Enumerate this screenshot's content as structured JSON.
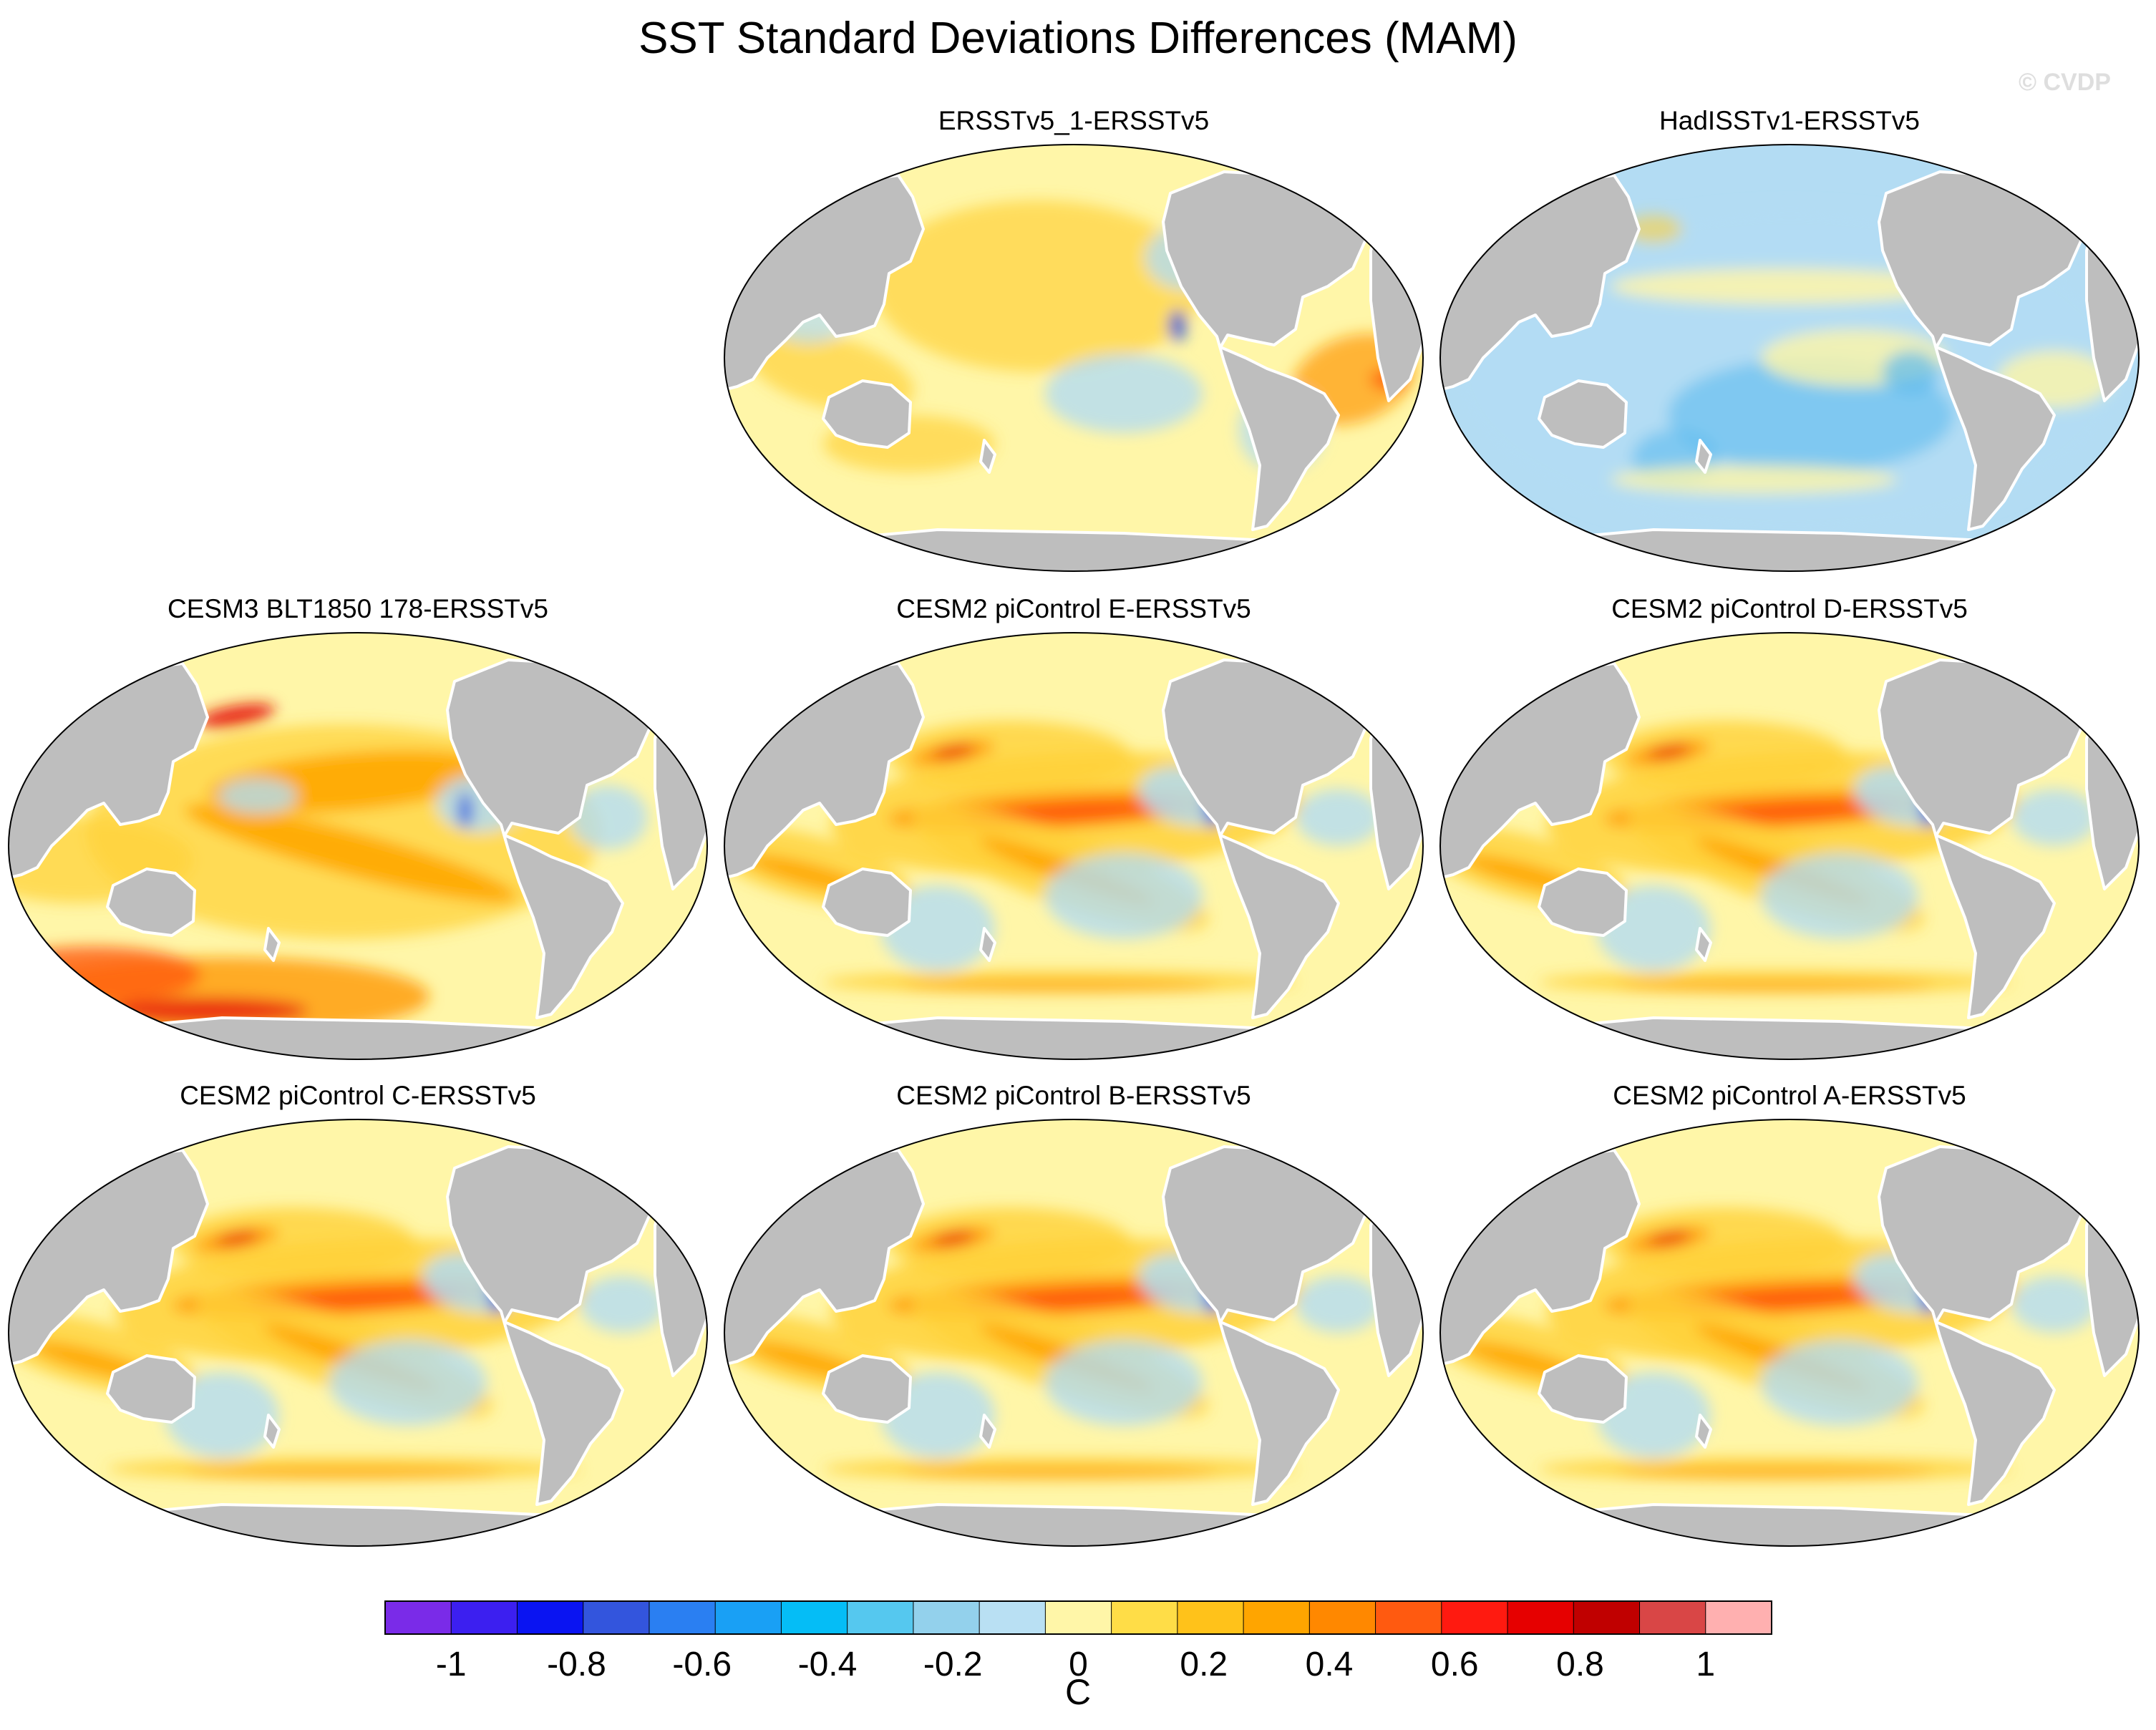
{
  "title": "SST Standard Deviations Differences (MAM)",
  "watermark": "© CVDP",
  "colors": {
    "land": "#bebebe",
    "coast": "#ffffff",
    "ocean_base": "#fff6a8",
    "warm_mid": "#ffd13a",
    "warm_high": "#ff9e0c",
    "cool_mid": "#b3dcf3",
    "cool_high": "#5cbaf0",
    "hot": "#e8200f",
    "cold": "#1b4fe0"
  },
  "chart_data": {
    "type": "heatmap",
    "panels": [
      {
        "id": "ersstv5-1",
        "title": "ERSSTv5_1-ERSSTv5",
        "pattern": "obs-warm"
      },
      {
        "id": "hadisst",
        "title": "HadISSTv1-ERSSTv5",
        "pattern": "obs-cool"
      },
      {
        "id": "cesm3-blt",
        "title": "CESM3 BLT1850 178-ERSSTv5",
        "pattern": "model-strong"
      },
      {
        "id": "cesm2-e",
        "title": "CESM2 piControl E-ERSSTv5",
        "pattern": "model"
      },
      {
        "id": "cesm2-d",
        "title": "CESM2 piControl D-ERSSTv5",
        "pattern": "model"
      },
      {
        "id": "cesm2-c",
        "title": "CESM2 piControl C-ERSSTv5",
        "pattern": "model"
      },
      {
        "id": "cesm2-b",
        "title": "CESM2 piControl B-ERSSTv5",
        "pattern": "model"
      },
      {
        "id": "cesm2-a",
        "title": "CESM2 piControl A-ERSSTv5",
        "pattern": "model"
      }
    ],
    "colorbar": {
      "colors": [
        "#7a2be8",
        "#3c1ff0",
        "#0a14f2",
        "#3355dd",
        "#2a7ff2",
        "#19a0f5",
        "#05bdf6",
        "#55c8ef",
        "#93d1ec",
        "#b9e0f3",
        "#fff6a8",
        "#ffdd47",
        "#ffc21a",
        "#ffa500",
        "#ff8800",
        "#ff5a10",
        "#ff1a10",
        "#e60000",
        "#c00000",
        "#d94646",
        "#ffb0b0"
      ],
      "tick_labels": [
        "-1",
        "-0.8",
        "-0.6",
        "-0.4",
        "-0.2",
        "0",
        "0.2",
        "0.4",
        "0.6",
        "0.8",
        "1"
      ],
      "range": [
        -1,
        1
      ],
      "label": "C"
    }
  }
}
